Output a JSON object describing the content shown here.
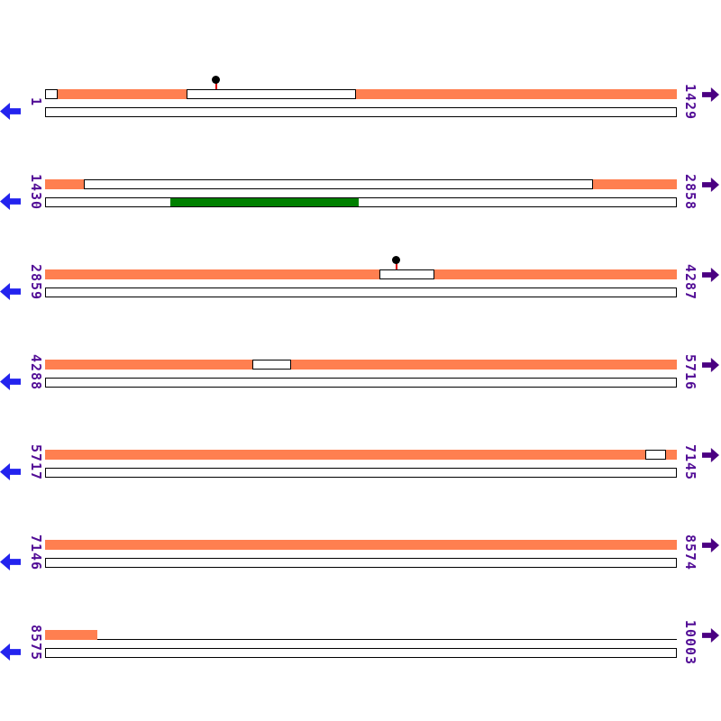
{
  "map": {
    "colors": {
      "feature_orange": "#FF7F50",
      "feature_green": "#008000",
      "box_outline": "#000000",
      "baseline": "#000000",
      "label_text": "#520D96",
      "left_arrow": "#2323EE",
      "right_arrow": "#4B0082",
      "marker_stem": "#DD0000",
      "marker_head": "#000000",
      "background": "#FFFFFF"
    },
    "rows": [
      {
        "start_label": "1",
        "end_label": "1429",
        "track1": [
          {
            "type": "box",
            "from": 0.0,
            "to": 0.02
          },
          {
            "type": "block",
            "color_key": "orange",
            "from": 0.02,
            "to": 0.224
          },
          {
            "type": "box",
            "from": 0.224,
            "to": 0.492
          },
          {
            "type": "block",
            "color_key": "orange",
            "from": 0.492,
            "to": 1.0
          }
        ],
        "track2": [
          {
            "type": "box",
            "from": 0.0,
            "to": 1.0
          }
        ],
        "markers": [
          {
            "x": 0.271
          }
        ]
      },
      {
        "start_label": "1430",
        "end_label": "2858",
        "track1": [
          {
            "type": "block",
            "color_key": "orange",
            "from": 0.0,
            "to": 0.061
          },
          {
            "type": "box",
            "from": 0.061,
            "to": 0.867
          },
          {
            "type": "block",
            "color_key": "orange",
            "from": 0.867,
            "to": 1.0
          }
        ],
        "track2": [
          {
            "type": "box",
            "from": 0.0,
            "to": 1.0
          },
          {
            "type": "block",
            "color_key": "green",
            "from": 0.198,
            "to": 0.497
          }
        ],
        "markers": []
      },
      {
        "start_label": "2859",
        "end_label": "4287",
        "track1": [
          {
            "type": "block",
            "color_key": "orange",
            "from": 0.0,
            "to": 0.529
          },
          {
            "type": "box",
            "from": 0.529,
            "to": 0.616
          },
          {
            "type": "block",
            "color_key": "orange",
            "from": 0.616,
            "to": 1.0
          }
        ],
        "track2": [
          {
            "type": "box",
            "from": 0.0,
            "to": 1.0
          }
        ],
        "markers": [
          {
            "x": 0.556
          }
        ]
      },
      {
        "start_label": "4288",
        "end_label": "5716",
        "track1": [
          {
            "type": "block",
            "color_key": "orange",
            "from": 0.0,
            "to": 0.328
          },
          {
            "type": "box",
            "from": 0.328,
            "to": 0.39
          },
          {
            "type": "block",
            "color_key": "orange",
            "from": 0.39,
            "to": 1.0
          }
        ],
        "track2": [
          {
            "type": "box",
            "from": 0.0,
            "to": 1.0
          }
        ],
        "markers": []
      },
      {
        "start_label": "5717",
        "end_label": "7145",
        "track1": [
          {
            "type": "block",
            "color_key": "orange",
            "from": 0.0,
            "to": 0.95
          },
          {
            "type": "box",
            "from": 0.95,
            "to": 0.983
          },
          {
            "type": "block",
            "color_key": "orange",
            "from": 0.983,
            "to": 1.0
          }
        ],
        "track2": [
          {
            "type": "box",
            "from": 0.0,
            "to": 1.0
          }
        ],
        "markers": []
      },
      {
        "start_label": "7146",
        "end_label": "8574",
        "track1": [
          {
            "type": "block",
            "color_key": "orange",
            "from": 0.0,
            "to": 1.0
          }
        ],
        "track2": [
          {
            "type": "box",
            "from": 0.0,
            "to": 1.0
          }
        ],
        "markers": []
      },
      {
        "start_label": "8575",
        "end_label": "10003",
        "track1": [
          {
            "type": "block",
            "color_key": "orange",
            "from": 0.0,
            "to": 0.083
          },
          {
            "type": "line",
            "from": 0.083,
            "to": 1.0
          }
        ],
        "track2": [
          {
            "type": "box",
            "from": 0.0,
            "to": 1.0
          }
        ],
        "markers": []
      }
    ]
  }
}
